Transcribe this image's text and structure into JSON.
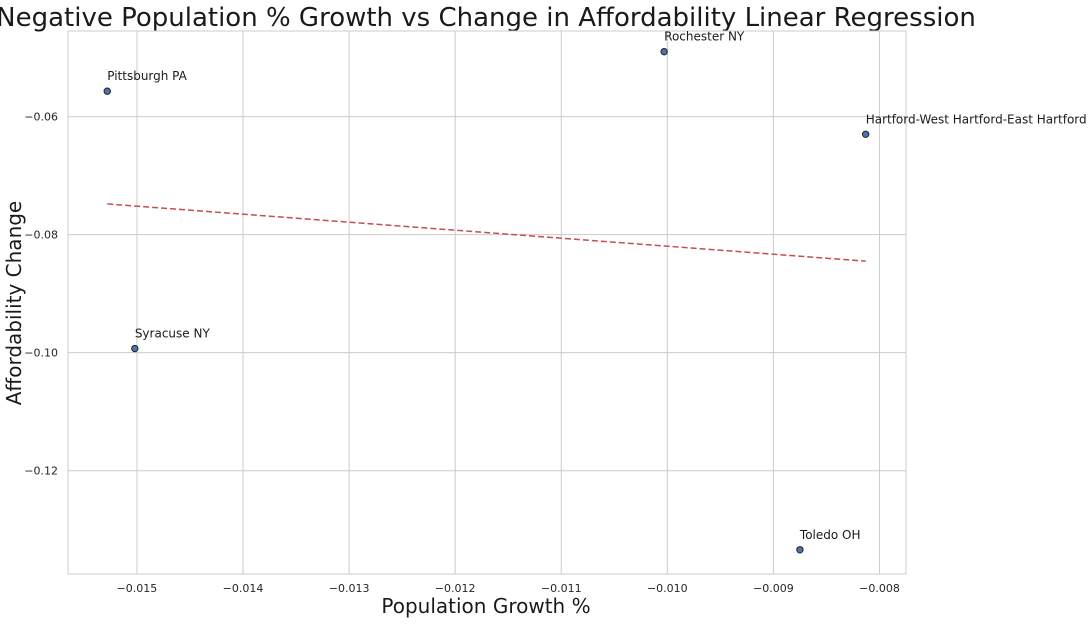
{
  "colors": {
    "point_fill": "#4c72b0",
    "regression_line": "#c44e52",
    "grid": "#cccccc",
    "background": "#ffffff"
  },
  "chart_data": {
    "type": "scatter",
    "title": "Negative Population % Growth vs Change in Affordability Linear Regression",
    "xlabel": "Population Growth %",
    "ylabel": "Affordability Change",
    "xlim": [
      -0.01565,
      -0.00775
    ],
    "ylim": [
      -0.1375,
      -0.0455
    ],
    "grid": true,
    "xticks": [
      -0.015,
      -0.014,
      -0.013,
      -0.012,
      -0.011,
      -0.01,
      -0.009,
      -0.008
    ],
    "xtick_labels": [
      "−0.015",
      "−0.014",
      "−0.013",
      "−0.012",
      "−0.011",
      "−0.010",
      "−0.009",
      "−0.008"
    ],
    "yticks": [
      -0.12,
      -0.1,
      -0.08,
      -0.06
    ],
    "ytick_labels": [
      "−0.12",
      "−0.10",
      "−0.08",
      "−0.06"
    ],
    "points": [
      {
        "label": "Pittsburgh PA",
        "x": -0.01528,
        "y": -0.0557
      },
      {
        "label": "Syracuse NY",
        "x": -0.01502,
        "y": -0.0993
      },
      {
        "label": "Rochester NY",
        "x": -0.01003,
        "y": -0.049
      },
      {
        "label": "Hartford-West Hartford-East Hartford CT",
        "x": -0.00813,
        "y": -0.063
      },
      {
        "label": "Toledo OH",
        "x": -0.00875,
        "y": -0.1334
      }
    ],
    "regression": {
      "x": [
        -0.01528,
        -0.00813
      ],
      "y": [
        -0.0748,
        -0.0845
      ]
    }
  }
}
